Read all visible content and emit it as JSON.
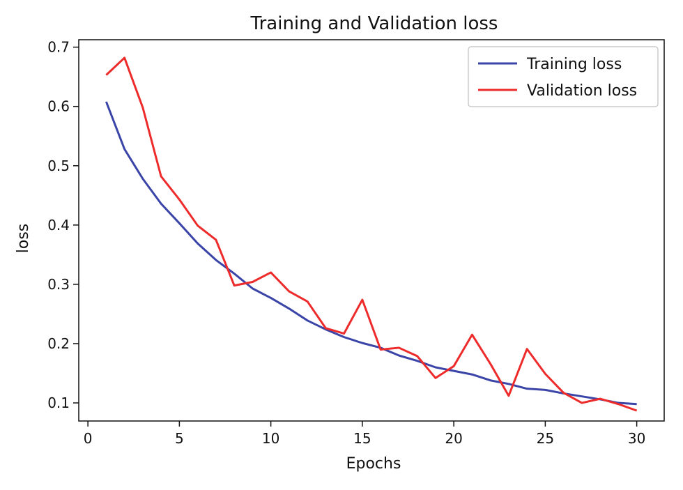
{
  "chart_data": {
    "type": "line",
    "title": "Training and Validation loss",
    "xlabel": "Epochs",
    "ylabel": "loss",
    "xlim": [
      -0.5,
      31.5
    ],
    "ylim": [
      0.0695,
      0.7125
    ],
    "xticks": [
      0,
      5,
      10,
      15,
      20,
      25,
      30
    ],
    "yticks": [
      0.1,
      0.2,
      0.3,
      0.4,
      0.5,
      0.6,
      0.7
    ],
    "xtick_labels": [
      "0",
      "5",
      "10",
      "15",
      "20",
      "25",
      "30"
    ],
    "ytick_labels": [
      "0.1",
      "0.2",
      "0.3",
      "0.4",
      "0.5",
      "0.6",
      "0.7"
    ],
    "grid": false,
    "legend_position": "top-right",
    "x": [
      1,
      2,
      3,
      4,
      5,
      6,
      7,
      8,
      9,
      10,
      11,
      12,
      13,
      14,
      15,
      16,
      17,
      18,
      19,
      20,
      21,
      22,
      23,
      24,
      25,
      26,
      27,
      28,
      29,
      30
    ],
    "series": [
      {
        "name": "Training loss",
        "color": "#3b45a8",
        "values": [
          0.608,
          0.528,
          0.478,
          0.436,
          0.403,
          0.369,
          0.341,
          0.318,
          0.293,
          0.277,
          0.259,
          0.239,
          0.224,
          0.211,
          0.201,
          0.193,
          0.18,
          0.171,
          0.16,
          0.154,
          0.148,
          0.138,
          0.132,
          0.124,
          0.122,
          0.116,
          0.111,
          0.106,
          0.1,
          0.098
        ]
      },
      {
        "name": "Validation loss",
        "color": "#ee2b2b",
        "values": [
          0.653,
          0.682,
          0.598,
          0.482,
          0.443,
          0.399,
          0.375,
          0.298,
          0.304,
          0.32,
          0.288,
          0.271,
          0.226,
          0.217,
          0.274,
          0.19,
          0.193,
          0.179,
          0.142,
          0.162,
          0.215,
          0.166,
          0.112,
          0.191,
          0.149,
          0.117,
          0.1,
          0.107,
          0.098,
          0.087
        ]
      }
    ]
  }
}
